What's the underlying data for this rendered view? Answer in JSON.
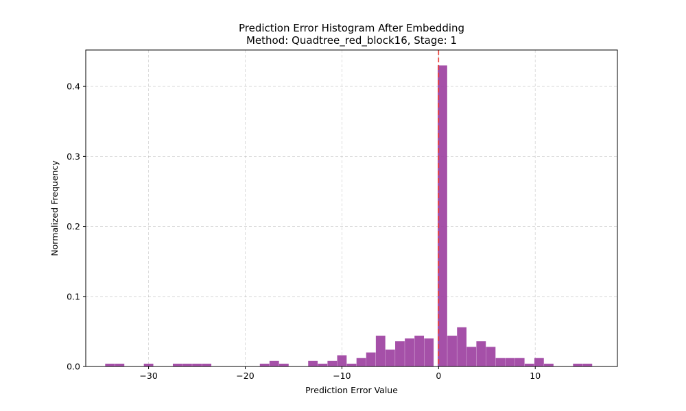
{
  "chart_data": {
    "type": "bar",
    "title": "Prediction Error Histogram After Embedding",
    "subtitle": "Method: Quadtree_red_block16, Stage: 1",
    "xlabel": "Prediction Error Value",
    "ylabel": "Normalized Frequency",
    "xlim": [
      -36.5,
      18.5
    ],
    "ylim": [
      0,
      0.452
    ],
    "xticks": [
      -30,
      -20,
      -10,
      0,
      10
    ],
    "xtick_labels": [
      "−30",
      "−20",
      "−10",
      "0",
      "10"
    ],
    "yticks": [
      0.0,
      0.1,
      0.2,
      0.3,
      0.4
    ],
    "ytick_labels": [
      "0.0",
      "0.1",
      "0.2",
      "0.3",
      "0.4"
    ],
    "grid": true,
    "bar_color": "#9b3d9e",
    "bar_opacity": 0.9,
    "bin_width": 0.98,
    "bins": [
      {
        "x": -34,
        "value": 0.004
      },
      {
        "x": -33,
        "value": 0.004
      },
      {
        "x": -30,
        "value": 0.004
      },
      {
        "x": -27,
        "value": 0.004
      },
      {
        "x": -26,
        "value": 0.004
      },
      {
        "x": -25,
        "value": 0.004
      },
      {
        "x": -24,
        "value": 0.004
      },
      {
        "x": -18,
        "value": 0.004
      },
      {
        "x": -17,
        "value": 0.008
      },
      {
        "x": -16,
        "value": 0.004
      },
      {
        "x": -13,
        "value": 0.008
      },
      {
        "x": -12,
        "value": 0.004
      },
      {
        "x": -11,
        "value": 0.008
      },
      {
        "x": -10,
        "value": 0.016
      },
      {
        "x": -9,
        "value": 0.004
      },
      {
        "x": -8,
        "value": 0.012
      },
      {
        "x": -7,
        "value": 0.02
      },
      {
        "x": -6,
        "value": 0.044
      },
      {
        "x": -5,
        "value": 0.024
      },
      {
        "x": -4,
        "value": 0.036
      },
      {
        "x": -3,
        "value": 0.04
      },
      {
        "x": -2,
        "value": 0.044
      },
      {
        "x": -1,
        "value": 0.04
      },
      {
        "x": 0.4,
        "value": 0.43
      },
      {
        "x": 1.4,
        "value": 0.044
      },
      {
        "x": 2.4,
        "value": 0.056
      },
      {
        "x": 3.4,
        "value": 0.028
      },
      {
        "x": 4.4,
        "value": 0.036
      },
      {
        "x": 5.4,
        "value": 0.028
      },
      {
        "x": 6.4,
        "value": 0.012
      },
      {
        "x": 7.4,
        "value": 0.012
      },
      {
        "x": 8.4,
        "value": 0.012
      },
      {
        "x": 9.4,
        "value": 0.004
      },
      {
        "x": 10.4,
        "value": 0.012
      },
      {
        "x": 11.4,
        "value": 0.004
      },
      {
        "x": 14.4,
        "value": 0.004
      },
      {
        "x": 15.4,
        "value": 0.004
      }
    ],
    "reference_line": {
      "x": 0,
      "color": "#e8413a",
      "style": "dashed"
    }
  }
}
